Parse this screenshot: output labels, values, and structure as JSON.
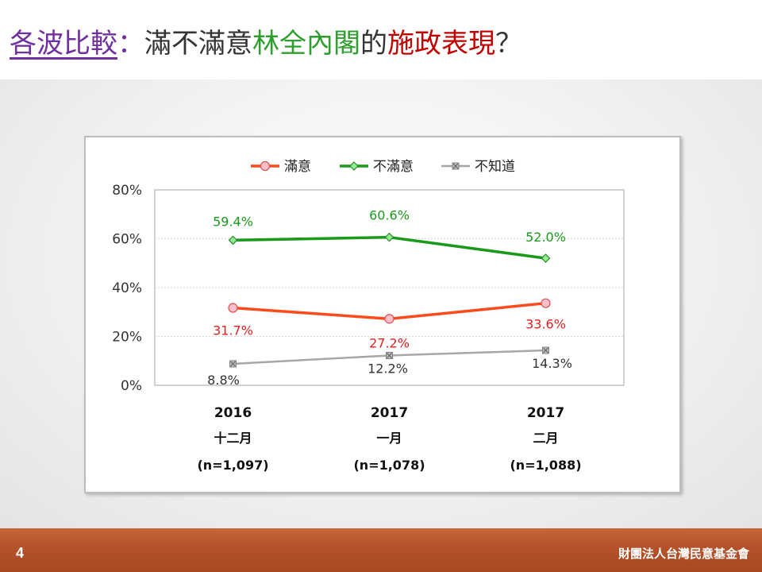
{
  "title": {
    "parts": [
      {
        "text": "各波比較",
        "color": "#7030a0"
      },
      {
        "text": "：",
        "color": "#7030a0"
      },
      {
        "text": "滿不滿意",
        "color": "#333333"
      },
      {
        "text": "林全內閣",
        "color": "#2e9e2e"
      },
      {
        "text": "的",
        "color": "#333333"
      },
      {
        "text": "施政表現",
        "color": "#c00000"
      },
      {
        "text": "？",
        "color": "#333333"
      }
    ]
  },
  "footer": {
    "page_number": "4",
    "organization": "財團法人台灣民意基金會"
  },
  "chart_data": {
    "type": "line",
    "categories": [
      {
        "year": "2016",
        "month": "十二月",
        "n": "(n=1,097)"
      },
      {
        "year": "2017",
        "month": "一月",
        "n": "(n=1,078)"
      },
      {
        "year": "2017",
        "month": "二月",
        "n": "(n=1,088)"
      }
    ],
    "series": [
      {
        "name": "滿意",
        "values": [
          31.7,
          27.2,
          33.6
        ],
        "labels": [
          "31.7%",
          "27.2%",
          "33.6%"
        ],
        "color": "#ff4a1c",
        "label_color": "#e02020",
        "marker": "circle",
        "marker_fill": "#ffc0cb",
        "marker_stroke": "#d9534f"
      },
      {
        "name": "不滿意",
        "values": [
          59.4,
          60.6,
          52.0
        ],
        "labels": [
          "59.4%",
          "60.6%",
          "52.0%"
        ],
        "color": "#1a9a1a",
        "label_color": "#1a9a1a",
        "marker": "diamond",
        "marker_fill": "#90ee90",
        "marker_stroke": "#2e8b2e"
      },
      {
        "name": "不知道",
        "values": [
          8.8,
          12.2,
          14.3
        ],
        "labels": [
          "8.8%",
          "12.2%",
          "14.3%"
        ],
        "color": "#a6a6a6",
        "label_color": "#333333",
        "marker": "square-x",
        "marker_fill": "#bfbfbf",
        "marker_stroke": "#808080"
      }
    ],
    "y_ticks": [
      "0%",
      "20%",
      "40%",
      "60%",
      "80%"
    ],
    "ylim": [
      0,
      80
    ],
    "legend_position": "top",
    "grid": true
  }
}
